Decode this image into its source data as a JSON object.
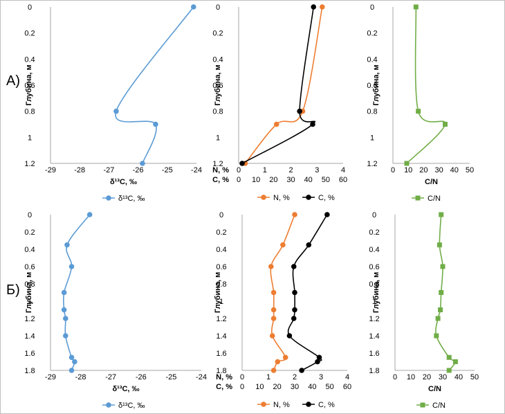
{
  "rows": [
    {
      "label": "А)"
    },
    {
      "label": "Б)"
    }
  ],
  "chart_data": [
    {
      "type": "scatter",
      "panel": "A1",
      "ylabel": "Глубина, м",
      "xlabel": "δ¹³C, ‰",
      "xlim": [
        -29,
        -24
      ],
      "ylim": [
        1.2,
        0
      ],
      "xticks": [
        "-29",
        "-28",
        "-27",
        "-26",
        "-25",
        "-24"
      ],
      "yticks": [
        "0",
        "0.2",
        "0.4",
        "0.6",
        "0.8",
        "1",
        "1.2"
      ],
      "color": "#5b9bd5",
      "marker": "circle",
      "grid": false,
      "legend": "bottom",
      "series": [
        {
          "name": "δ¹³C, ‰",
          "values": [
            [
              -24.1,
              0
            ],
            [
              -26.75,
              0.8
            ],
            [
              -25.4,
              0.9
            ],
            [
              -25.85,
              1.2
            ]
          ]
        }
      ]
    },
    {
      "type": "scatter",
      "panel": "A2",
      "ylabel": "Глубина, м",
      "ylim": [
        1.2,
        0
      ],
      "grid": false,
      "legend": "bottom",
      "yticks": [
        "0",
        "0.2",
        "0.4",
        "0.6",
        "0.8",
        "1",
        "1.2"
      ],
      "axes": [
        {
          "label": "N, %",
          "xlim": [
            0,
            4
          ],
          "ticks": [
            "0",
            "1",
            "2",
            "3",
            "4"
          ]
        },
        {
          "label": "C, %",
          "xlim": [
            0,
            60
          ],
          "ticks": [
            "0",
            "10",
            "20",
            "30",
            "40",
            "50",
            "60"
          ]
        }
      ],
      "series": [
        {
          "name": "N, %",
          "axis": 0,
          "color": "#ed7d31",
          "values": [
            [
              3.2,
              0
            ],
            [
              2.45,
              0.8
            ],
            [
              1.45,
              0.9
            ],
            [
              0.25,
              1.2
            ]
          ]
        },
        {
          "name": "C, %",
          "axis": 1,
          "color": "#000000",
          "values": [
            [
              43,
              0
            ],
            [
              35,
              0.8
            ],
            [
              42.5,
              0.9
            ],
            [
              2,
              1.2
            ]
          ]
        }
      ]
    },
    {
      "type": "scatter",
      "panel": "A3",
      "ylabel": "Глубина, м",
      "xlabel": "C/N",
      "xlim": [
        0,
        50
      ],
      "ylim": [
        1.2,
        0
      ],
      "grid": false,
      "legend": "bottom",
      "xticks": [
        "0",
        "10",
        "20",
        "30",
        "40",
        "50"
      ],
      "yticks": [
        "0",
        "0.2",
        "0.4",
        "0.6",
        "0.8",
        "1",
        "1.2"
      ],
      "color": "#70ad47",
      "marker": "square",
      "series": [
        {
          "name": "C/N",
          "values": [
            [
              15,
              0
            ],
            [
              16.5,
              0.8
            ],
            [
              34,
              0.9
            ],
            [
              9,
              1.2
            ]
          ]
        }
      ]
    },
    {
      "type": "scatter",
      "panel": "B1",
      "ylabel": "Глубина, м",
      "xlabel": "δ¹³C, ‰",
      "xlim": [
        -29,
        -24
      ],
      "ylim": [
        1.8,
        0
      ],
      "grid": false,
      "legend": "bottom",
      "xticks": [
        "-29",
        "-28",
        "-27",
        "-26",
        "-25",
        "-24"
      ],
      "yticks": [
        "0",
        "0.2",
        "0.4",
        "0.6",
        "0.8",
        "1",
        "1.2",
        "1.4",
        "1.6",
        "1.8"
      ],
      "color": "#5b9bd5",
      "marker": "circle",
      "series": [
        {
          "name": "δ¹³C, ‰",
          "values": [
            [
              -27.7,
              0
            ],
            [
              -28.45,
              0.35
            ],
            [
              -28.3,
              0.6
            ],
            [
              -28.55,
              0.9
            ],
            [
              -28.55,
              1.1
            ],
            [
              -28.5,
              1.2
            ],
            [
              -28.5,
              1.4
            ],
            [
              -28.3,
              1.65
            ],
            [
              -28.2,
              1.7
            ],
            [
              -28.3,
              1.8
            ]
          ]
        }
      ]
    },
    {
      "type": "scatter",
      "panel": "B2",
      "ylabel": "Глубина, м",
      "ylim": [
        1.8,
        0
      ],
      "grid": false,
      "legend": "bottom",
      "yticks": [
        "0",
        "0.2",
        "0.4",
        "0.6",
        "0.8",
        "1",
        "1.2",
        "1.4",
        "1.6",
        "1.8"
      ],
      "axes": [
        {
          "label": "N, %",
          "xlim": [
            0,
            4
          ],
          "ticks": [
            "0",
            "1",
            "2",
            "3",
            "4"
          ]
        },
        {
          "label": "C, %",
          "xlim": [
            0,
            60
          ],
          "ticks": [
            "0",
            "10",
            "20",
            "30",
            "40",
            "50",
            "60"
          ]
        }
      ],
      "series": [
        {
          "name": "N, %",
          "axis": 0,
          "color": "#ed7d31",
          "values": [
            [
              2.0,
              0
            ],
            [
              1.55,
              0.35
            ],
            [
              1.1,
              0.6
            ],
            [
              1.2,
              0.9
            ],
            [
              1.2,
              1.1
            ],
            [
              1.2,
              1.2
            ],
            [
              1.15,
              1.4
            ],
            [
              1.65,
              1.65
            ],
            [
              1.35,
              1.7
            ],
            [
              1.2,
              1.8
            ]
          ]
        },
        {
          "name": "C, %",
          "axis": 1,
          "color": "#000000",
          "values": [
            [
              48.5,
              0
            ],
            [
              38,
              0.35
            ],
            [
              29.5,
              0.6
            ],
            [
              30,
              0.9
            ],
            [
              30,
              1.1
            ],
            [
              29.5,
              1.2
            ],
            [
              27,
              1.4
            ],
            [
              44,
              1.65
            ],
            [
              43,
              1.7
            ],
            [
              34,
              1.8
            ]
          ]
        }
      ]
    },
    {
      "type": "scatter",
      "panel": "B3",
      "ylabel": "Глубина, м",
      "xlabel": "C/N",
      "xlim": [
        0,
        50
      ],
      "ylim": [
        1.8,
        0
      ],
      "grid": false,
      "legend": "bottom",
      "xticks": [
        "0",
        "10",
        "20",
        "30",
        "40",
        "50"
      ],
      "yticks": [
        "0",
        "0.2",
        "0.4",
        "0.6",
        "0.8",
        "1",
        "1.2",
        "1.4",
        "1.6",
        "1.8"
      ],
      "color": "#70ad47",
      "marker": "square",
      "series": [
        {
          "name": "C/N",
          "values": [
            [
              29,
              0
            ],
            [
              28,
              0.35
            ],
            [
              30,
              0.6
            ],
            [
              29,
              0.9
            ],
            [
              28.5,
              1.1
            ],
            [
              27,
              1.2
            ],
            [
              26,
              1.4
            ],
            [
              34,
              1.65
            ],
            [
              38,
              1.7
            ],
            [
              34,
              1.8
            ]
          ]
        }
      ]
    }
  ]
}
